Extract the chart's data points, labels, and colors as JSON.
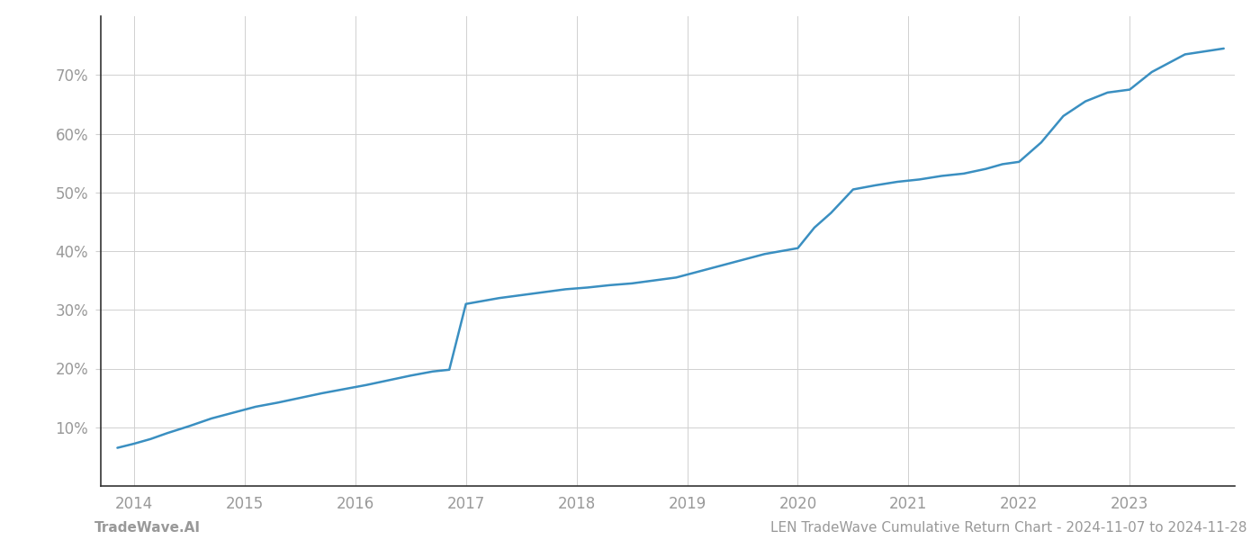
{
  "x_years": [
    2013.85,
    2014.0,
    2014.15,
    2014.3,
    2014.5,
    2014.7,
    2014.9,
    2015.1,
    2015.3,
    2015.5,
    2015.7,
    2015.9,
    2016.1,
    2016.3,
    2016.5,
    2016.7,
    2016.85,
    2017.0,
    2017.15,
    2017.3,
    2017.5,
    2017.7,
    2017.9,
    2018.1,
    2018.3,
    2018.5,
    2018.7,
    2018.9,
    2019.1,
    2019.3,
    2019.5,
    2019.7,
    2019.85,
    2020.0,
    2020.15,
    2020.3,
    2020.5,
    2020.7,
    2020.9,
    2021.1,
    2021.3,
    2021.5,
    2021.7,
    2021.85,
    2022.0,
    2022.2,
    2022.4,
    2022.6,
    2022.8,
    2023.0,
    2023.2,
    2023.5,
    2023.85
  ],
  "y_values": [
    6.5,
    7.2,
    8.0,
    9.0,
    10.2,
    11.5,
    12.5,
    13.5,
    14.2,
    15.0,
    15.8,
    16.5,
    17.2,
    18.0,
    18.8,
    19.5,
    19.8,
    31.0,
    31.5,
    32.0,
    32.5,
    33.0,
    33.5,
    33.8,
    34.2,
    34.5,
    35.0,
    35.5,
    36.5,
    37.5,
    38.5,
    39.5,
    40.0,
    40.5,
    44.0,
    46.5,
    50.5,
    51.2,
    51.8,
    52.2,
    52.8,
    53.2,
    54.0,
    54.8,
    55.2,
    58.5,
    63.0,
    65.5,
    67.0,
    67.5,
    70.5,
    73.5,
    74.5
  ],
  "line_color": "#3a8fc1",
  "line_width": 1.8,
  "background_color": "#ffffff",
  "grid_color": "#d0d0d0",
  "tick_label_color": "#999999",
  "x_ticks": [
    2014,
    2015,
    2016,
    2017,
    2018,
    2019,
    2020,
    2021,
    2022,
    2023
  ],
  "y_ticks": [
    10,
    20,
    30,
    40,
    50,
    60,
    70
  ],
  "y_min": 0,
  "y_max": 80,
  "x_min": 2013.7,
  "x_max": 2023.95,
  "footer_left": "TradeWave.AI",
  "footer_right": "LEN TradeWave Cumulative Return Chart - 2024-11-07 to 2024-11-28",
  "footer_color": "#999999",
  "footer_fontsize": 11,
  "left_spine_color": "#333333",
  "bottom_spine_color": "#333333"
}
